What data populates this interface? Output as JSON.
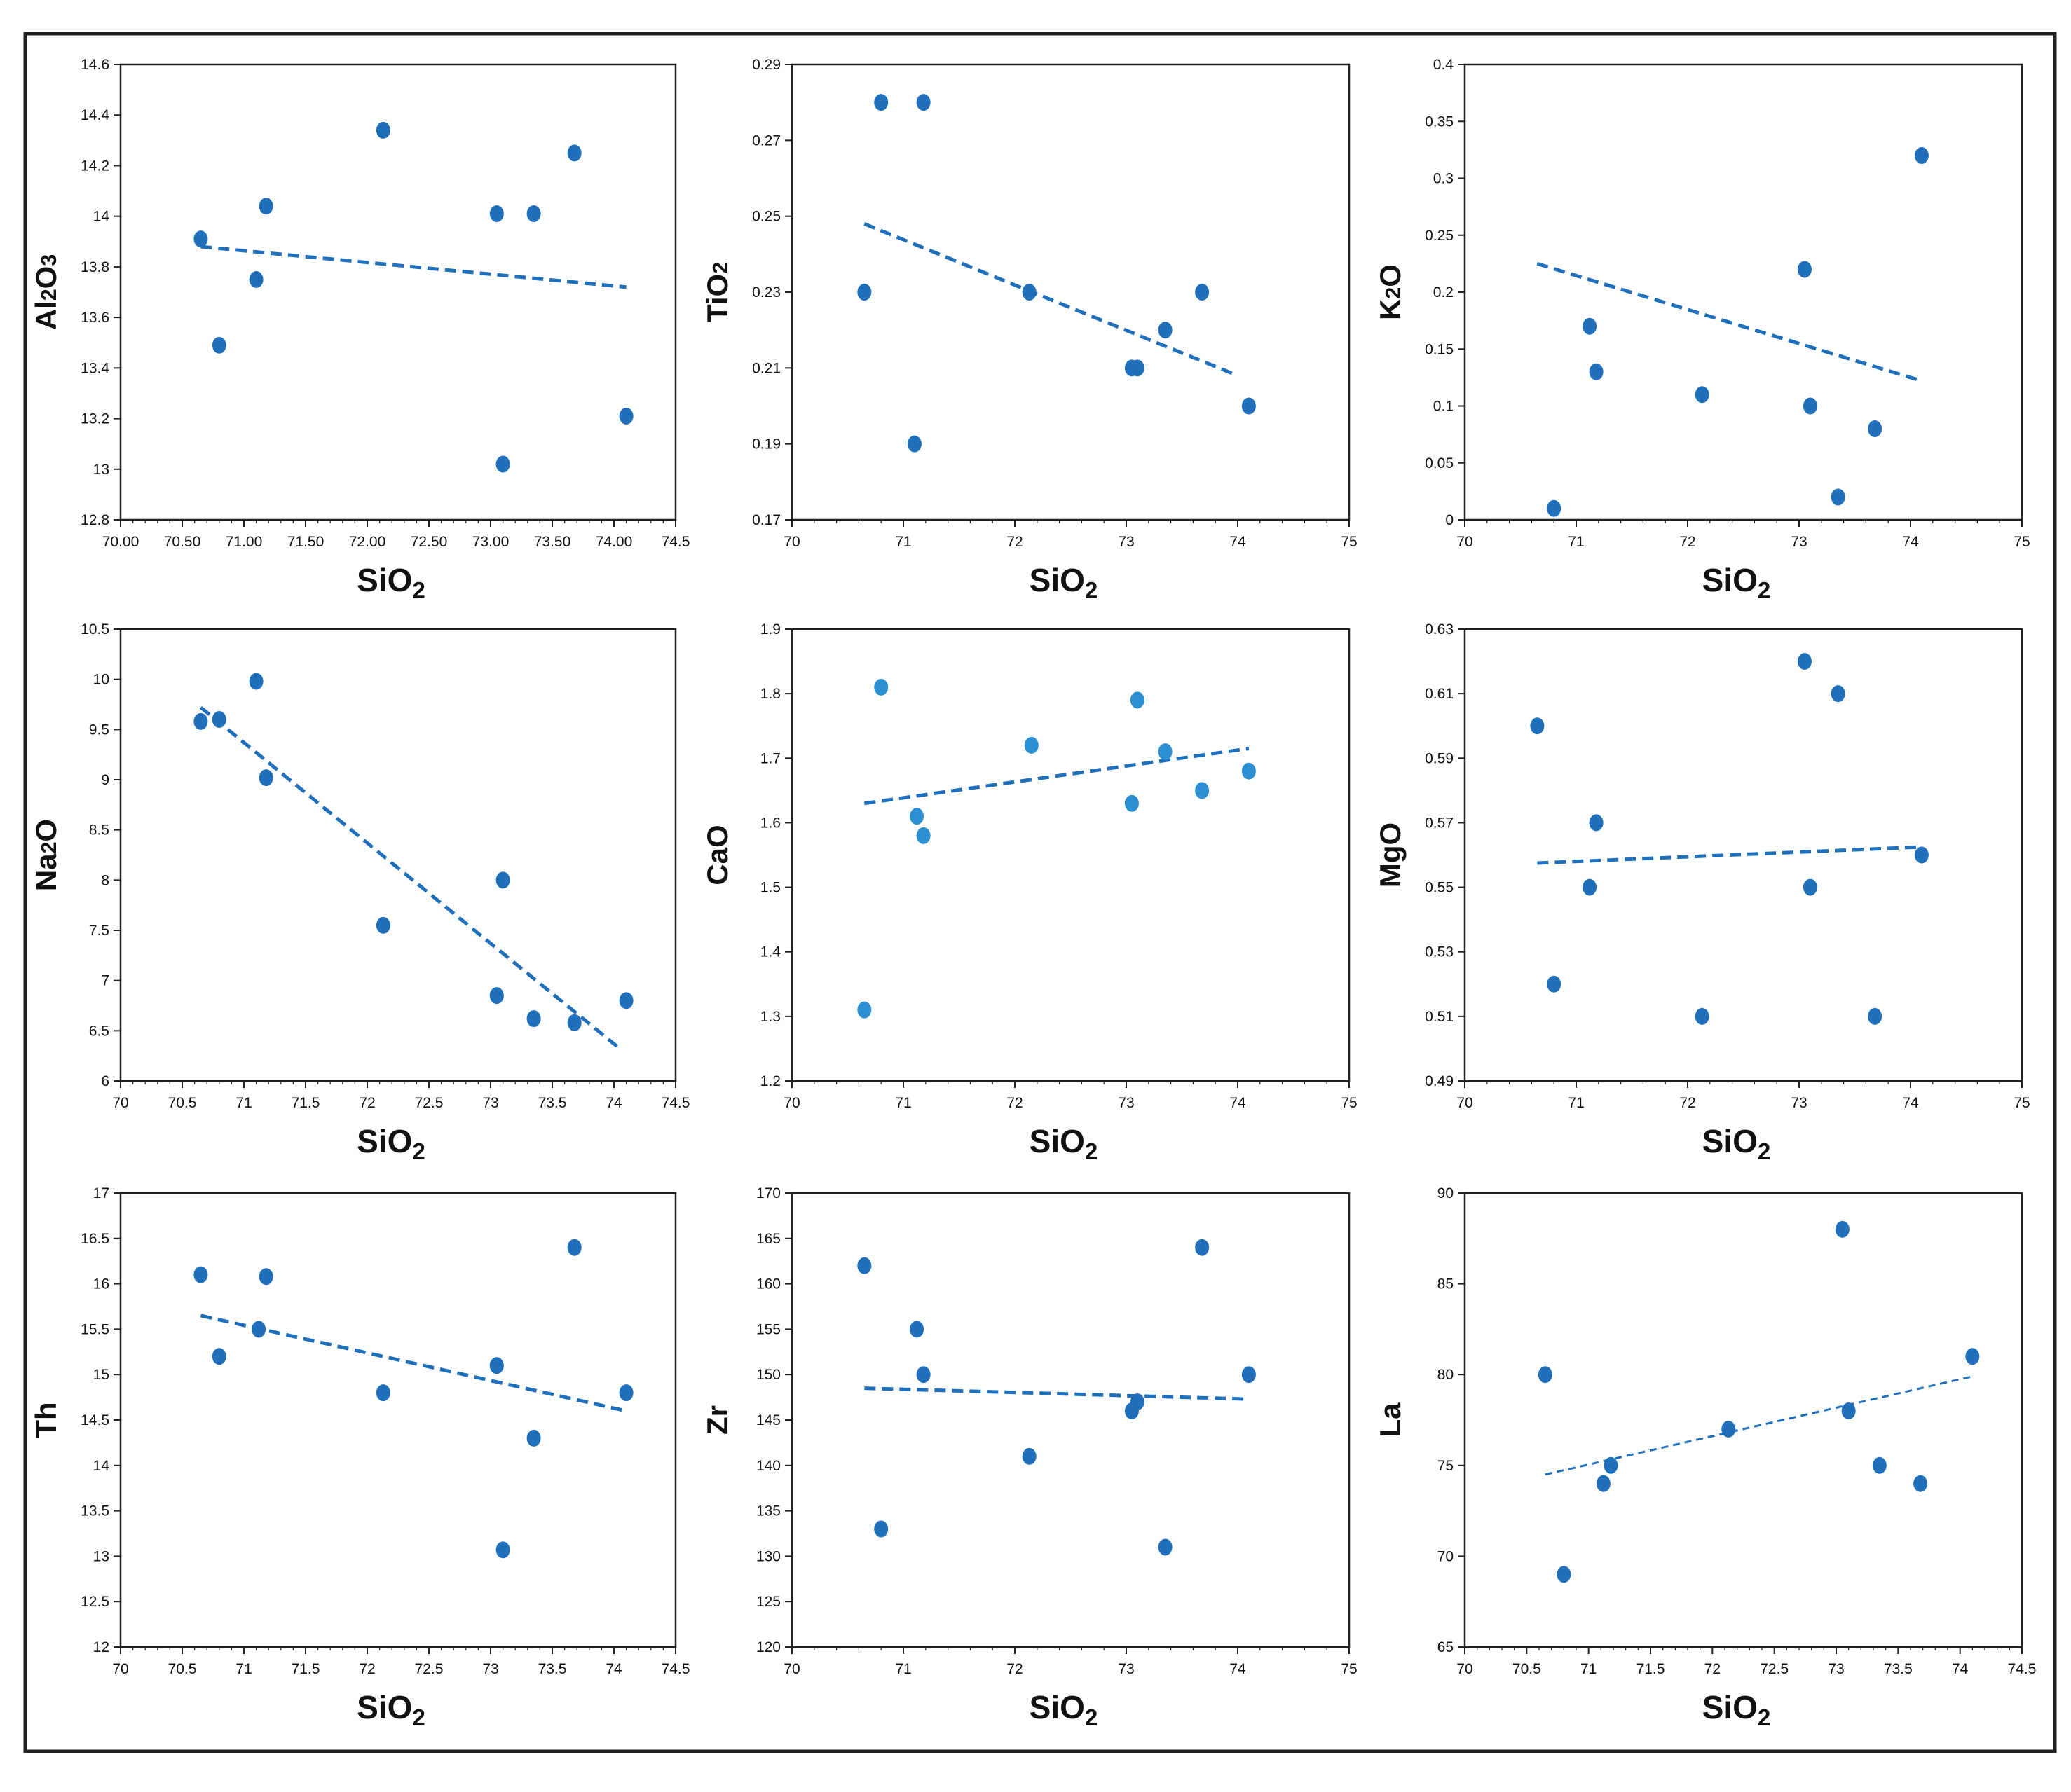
{
  "figure": {
    "panels": [
      {
        "id": "al2o3",
        "xlabel": {
          "main": "SiO",
          "sub": "2"
        },
        "ylabel": {
          "main": "Al",
          "sub": "2",
          "rest": "O",
          "sub2": "3"
        }
      },
      {
        "id": "tio2",
        "xlabel": {
          "main": "SiO",
          "sub": "2"
        },
        "ylabel": {
          "main": "TiO",
          "sub": "2",
          "rest": "",
          "sub2": ""
        }
      },
      {
        "id": "k2o",
        "xlabel": {
          "main": "SiO",
          "sub": "2"
        },
        "ylabel": {
          "main": "K",
          "sub": "2",
          "rest": "O",
          "sub2": ""
        }
      },
      {
        "id": "na2o",
        "xlabel": {
          "main": "SiO",
          "sub": "2"
        },
        "ylabel": {
          "main": "Na",
          "sub": "2",
          "rest": "O",
          "sub2": ""
        }
      },
      {
        "id": "cao",
        "xlabel": {
          "main": "SiO",
          "sub": "2"
        },
        "ylabel": {
          "main": "CaO",
          "sub": "",
          "rest": "",
          "sub2": ""
        }
      },
      {
        "id": "mgo",
        "xlabel": {
          "main": "SiO",
          "sub": "2"
        },
        "ylabel": {
          "main": "MgO",
          "sub": "",
          "rest": "",
          "sub2": ""
        }
      },
      {
        "id": "th",
        "xlabel": {
          "main": "SiO",
          "sub": "2"
        },
        "ylabel": {
          "main": "Th",
          "sub": "",
          "rest": "",
          "sub2": ""
        }
      },
      {
        "id": "zr",
        "xlabel": {
          "main": "SiO",
          "sub": "2"
        },
        "ylabel": {
          "main": "Zr",
          "sub": "",
          "rest": "",
          "sub2": ""
        }
      },
      {
        "id": "la",
        "xlabel": {
          "main": "SiO",
          "sub": "2"
        },
        "ylabel": {
          "main": "La",
          "sub": "",
          "rest": "",
          "sub2": ""
        }
      }
    ]
  },
  "colors": {
    "point": "#1f6fba",
    "point_light": "#2b8fd1",
    "trend": "#1f6fba",
    "frame": "#222222"
  },
  "chart_data": [
    {
      "type": "scatter",
      "id": "al2o3",
      "xlabel": "SiO2",
      "ylabel": "Al2O3",
      "xlim": [
        70.0,
        74.5
      ],
      "ylim": [
        12.8,
        14.6
      ],
      "xticks": [
        "70.00",
        "70.50",
        "71.00",
        "71.50",
        "72.00",
        "72.50",
        "73.00",
        "73.50",
        "74.00",
        "74.5"
      ],
      "yticks": [
        "12.8",
        "13",
        "13.2",
        "13.4",
        "13.6",
        "13.8",
        "14",
        "14.2",
        "14.4",
        "14.6"
      ],
      "x": [
        70.65,
        70.8,
        71.1,
        71.18,
        72.13,
        73.05,
        73.1,
        73.35,
        73.68,
        74.1
      ],
      "y": [
        13.91,
        13.49,
        13.75,
        14.04,
        14.34,
        14.01,
        13.02,
        14.01,
        14.25,
        13.21
      ],
      "trend": {
        "x1": 70.65,
        "y1": 13.88,
        "x2": 74.1,
        "y2": 13.72
      },
      "grid": false
    },
    {
      "type": "scatter",
      "id": "tio2",
      "xlabel": "SiO2",
      "ylabel": "TiO2",
      "xlim": [
        70,
        75
      ],
      "ylim": [
        0.17,
        0.29
      ],
      "xticks": [
        "70",
        "71",
        "72",
        "73",
        "74",
        "75"
      ],
      "yticks": [
        "0.17",
        "0.19",
        "0.21",
        "0.23",
        "0.25",
        "0.27",
        "0.29"
      ],
      "x": [
        70.65,
        70.8,
        71.1,
        71.18,
        72.13,
        73.05,
        73.1,
        73.35,
        73.68,
        74.1
      ],
      "y": [
        0.23,
        0.28,
        0.19,
        0.28,
        0.23,
        0.21,
        0.21,
        0.22,
        0.23,
        0.2
      ],
      "trend": {
        "x1": 70.65,
        "y1": 0.248,
        "x2": 74.0,
        "y2": 0.208
      },
      "grid": false
    },
    {
      "type": "scatter",
      "id": "k2o",
      "xlabel": "SiO2",
      "ylabel": "K2O",
      "xlim": [
        70,
        75
      ],
      "ylim": [
        0,
        0.4
      ],
      "xticks": [
        "70",
        "71",
        "72",
        "73",
        "74",
        "75"
      ],
      "yticks": [
        "0",
        "0.05",
        "0.1",
        "0.15",
        "0.2",
        "0.25",
        "0.3",
        "0.35",
        "0.4"
      ],
      "x": [
        70.8,
        71.12,
        71.18,
        72.13,
        73.05,
        73.1,
        73.35,
        73.68,
        74.1
      ],
      "y": [
        0.01,
        0.17,
        0.13,
        0.11,
        0.22,
        0.1,
        0.02,
        0.08,
        0.32
      ],
      "trend": {
        "x1": 70.65,
        "y1": 0.225,
        "x2": 74.1,
        "y2": 0.122
      },
      "grid": false
    },
    {
      "type": "scatter",
      "id": "na2o",
      "xlabel": "SiO2",
      "ylabel": "Na2O",
      "xlim": [
        70,
        74.5
      ],
      "ylim": [
        6,
        10.5
      ],
      "xticks": [
        "70",
        "70.5",
        "71",
        "71.5",
        "72",
        "72.5",
        "73",
        "73.5",
        "74",
        "74.5"
      ],
      "yticks": [
        "6",
        "6.5",
        "7",
        "7.5",
        "8",
        "8.5",
        "9",
        "9.5",
        "10",
        "10.5"
      ],
      "x": [
        70.65,
        70.8,
        71.1,
        71.18,
        72.13,
        73.05,
        73.1,
        73.35,
        73.68,
        74.1
      ],
      "y": [
        9.58,
        9.6,
        9.98,
        9.02,
        7.55,
        6.85,
        8.0,
        6.62,
        6.58,
        6.8
      ],
      "trend": {
        "x1": 70.65,
        "y1": 9.72,
        "x2": 74.05,
        "y2": 6.32
      },
      "grid": false
    },
    {
      "type": "scatter",
      "id": "cao",
      "xlabel": "SiO2",
      "ylabel": "CaO",
      "xlim": [
        70,
        75
      ],
      "ylim": [
        1.2,
        1.9
      ],
      "xticks": [
        "70",
        "71",
        "72",
        "73",
        "74",
        "75"
      ],
      "yticks": [
        "1.2",
        "1.3",
        "1.4",
        "1.5",
        "1.6",
        "1.7",
        "1.8",
        "1.9"
      ],
      "x": [
        70.65,
        70.8,
        71.12,
        71.18,
        72.15,
        73.05,
        73.1,
        73.35,
        73.68,
        74.1
      ],
      "y": [
        1.31,
        1.81,
        1.61,
        1.58,
        1.72,
        1.63,
        1.79,
        1.71,
        1.65,
        1.68
      ],
      "trend": {
        "x1": 70.65,
        "y1": 1.63,
        "x2": 74.1,
        "y2": 1.715
      },
      "grid": false
    },
    {
      "type": "scatter",
      "id": "mgo",
      "xlabel": "SiO2",
      "ylabel": "MgO",
      "xlim": [
        70,
        75
      ],
      "ylim": [
        0.49,
        0.63
      ],
      "xticks": [
        "70",
        "71",
        "72",
        "73",
        "74",
        "75"
      ],
      "yticks": [
        "0.49",
        "0.51",
        "0.53",
        "0.55",
        "0.57",
        "0.59",
        "0.61",
        "0.63"
      ],
      "x": [
        70.65,
        70.8,
        71.12,
        71.18,
        72.13,
        73.05,
        73.1,
        73.35,
        73.68,
        74.1
      ],
      "y": [
        0.6,
        0.52,
        0.55,
        0.57,
        0.51,
        0.62,
        0.55,
        0.61,
        0.51,
        0.56
      ],
      "trend": {
        "x1": 70.65,
        "y1": 0.5575,
        "x2": 74.1,
        "y2": 0.5625
      },
      "grid": false
    },
    {
      "type": "scatter",
      "id": "th",
      "xlabel": "SiO2",
      "ylabel": "Th",
      "xlim": [
        70,
        74.5
      ],
      "ylim": [
        12,
        17
      ],
      "xticks": [
        "70",
        "70.5",
        "71",
        "71.5",
        "72",
        "72.5",
        "73",
        "73.5",
        "74",
        "74.5"
      ],
      "yticks": [
        "12",
        "12.5",
        "13",
        "13.5",
        "14",
        "14.5",
        "15",
        "15.5",
        "16",
        "16.5",
        "17"
      ],
      "x": [
        70.65,
        70.8,
        71.12,
        71.18,
        72.13,
        73.05,
        73.1,
        73.35,
        73.68,
        74.1
      ],
      "y": [
        16.1,
        15.2,
        15.5,
        16.08,
        14.8,
        15.1,
        13.07,
        14.3,
        16.4,
        14.8
      ],
      "trend": {
        "x1": 70.65,
        "y1": 15.65,
        "x2": 74.1,
        "y2": 14.6
      },
      "grid": false
    },
    {
      "type": "scatter",
      "id": "zr",
      "xlabel": "SiO2",
      "ylabel": "Zr",
      "xlim": [
        70,
        75
      ],
      "ylim": [
        120,
        170
      ],
      "xticks": [
        "70",
        "71",
        "72",
        "73",
        "74",
        "75"
      ],
      "yticks": [
        "120",
        "125",
        "130",
        "135",
        "140",
        "145",
        "150",
        "155",
        "160",
        "165",
        "170"
      ],
      "x": [
        70.65,
        70.8,
        71.12,
        71.18,
        72.13,
        73.05,
        73.1,
        73.35,
        73.68,
        74.1
      ],
      "y": [
        162,
        133,
        155,
        150,
        141,
        146,
        147,
        131,
        164,
        150
      ],
      "trend": {
        "x1": 70.65,
        "y1": 148.5,
        "x2": 74.1,
        "y2": 147.3
      },
      "grid": false
    },
    {
      "type": "scatter",
      "id": "la",
      "xlabel": "SiO2",
      "ylabel": "La",
      "xlim": [
        70,
        74.5
      ],
      "ylim": [
        65,
        90
      ],
      "xticks": [
        "70",
        "70.5",
        "71",
        "71.5",
        "72",
        "72.5",
        "73",
        "73.5",
        "74",
        "74.5"
      ],
      "yticks": [
        "65",
        "70",
        "75",
        "80",
        "85",
        "90"
      ],
      "x": [
        70.65,
        70.8,
        71.12,
        71.18,
        72.13,
        73.05,
        73.1,
        73.35,
        73.68,
        74.1
      ],
      "y": [
        80,
        69,
        74,
        75,
        77,
        88,
        78,
        75,
        74,
        81
      ],
      "trend": {
        "x1": 70.65,
        "y1": 74.5,
        "x2": 74.1,
        "y2": 79.9
      },
      "grid": false
    }
  ]
}
